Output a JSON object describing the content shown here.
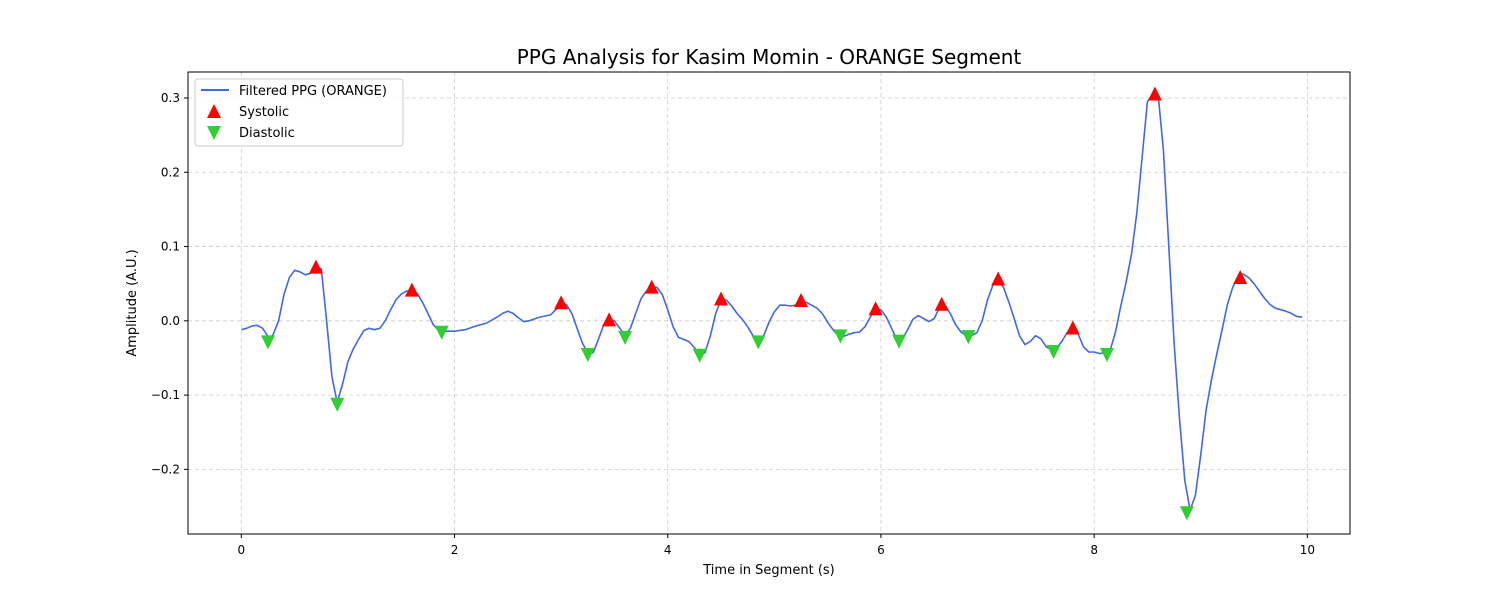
{
  "chart_data": {
    "type": "line",
    "title": "PPG Analysis for Kasim Momin - ORANGE Segment",
    "xlabel": "Time in Segment (s)",
    "ylabel": "Amplitude (A.U.)",
    "xlim": [
      -0.5,
      10.4
    ],
    "ylim": [
      -0.287,
      0.335
    ],
    "xticks": [
      0,
      2,
      4,
      6,
      8,
      10
    ],
    "xtick_labels": [
      "0",
      "2",
      "4",
      "6",
      "8",
      "10"
    ],
    "yticks": [
      -0.2,
      -0.1,
      0.0,
      0.1,
      0.2,
      0.3
    ],
    "ytick_labels": [
      "−0.2",
      "−0.1",
      "0.0",
      "0.1",
      "0.2",
      "0.3"
    ],
    "grid": true,
    "legend_position": "top-left",
    "colors": {
      "line": "#4169e1",
      "systolic": "#ff0000",
      "diastolic": "#32cd32",
      "grid": "#cccccc"
    },
    "series": [
      {
        "name": "Filtered PPG (ORANGE)",
        "type": "line",
        "points": [
          [
            0.0,
            -0.012
          ],
          [
            0.05,
            -0.01
          ],
          [
            0.1,
            -0.007
          ],
          [
            0.15,
            -0.006
          ],
          [
            0.2,
            -0.01
          ],
          [
            0.27,
            -0.025
          ],
          [
            0.3,
            -0.018
          ],
          [
            0.35,
            0.0
          ],
          [
            0.4,
            0.035
          ],
          [
            0.45,
            0.058
          ],
          [
            0.5,
            0.068
          ],
          [
            0.55,
            0.066
          ],
          [
            0.6,
            0.062
          ],
          [
            0.65,
            0.064
          ],
          [
            0.7,
            0.072
          ],
          [
            0.75,
            0.07
          ],
          [
            0.8,
            0.0
          ],
          [
            0.85,
            -0.075
          ],
          [
            0.9,
            -0.11
          ],
          [
            0.95,
            -0.085
          ],
          [
            1.0,
            -0.055
          ],
          [
            1.05,
            -0.038
          ],
          [
            1.1,
            -0.025
          ],
          [
            1.15,
            -0.013
          ],
          [
            1.2,
            -0.01
          ],
          [
            1.25,
            -0.012
          ],
          [
            1.3,
            -0.01
          ],
          [
            1.35,
            0.0
          ],
          [
            1.4,
            0.015
          ],
          [
            1.45,
            0.028
          ],
          [
            1.5,
            0.036
          ],
          [
            1.55,
            0.04
          ],
          [
            1.6,
            0.04
          ],
          [
            1.65,
            0.037
          ],
          [
            1.7,
            0.025
          ],
          [
            1.75,
            0.01
          ],
          [
            1.8,
            -0.005
          ],
          [
            1.85,
            -0.013
          ],
          [
            1.9,
            -0.014
          ],
          [
            1.95,
            -0.014
          ],
          [
            2.0,
            -0.014
          ],
          [
            2.1,
            -0.012
          ],
          [
            2.2,
            -0.007
          ],
          [
            2.3,
            -0.003
          ],
          [
            2.4,
            0.005
          ],
          [
            2.45,
            0.01
          ],
          [
            2.5,
            0.013
          ],
          [
            2.55,
            0.01
          ],
          [
            2.6,
            0.004
          ],
          [
            2.65,
            -0.001
          ],
          [
            2.7,
            0.0
          ],
          [
            2.8,
            0.005
          ],
          [
            2.9,
            0.008
          ],
          [
            3.0,
            0.022
          ],
          [
            3.05,
            0.022
          ],
          [
            3.1,
            0.01
          ],
          [
            3.15,
            -0.01
          ],
          [
            3.2,
            -0.03
          ],
          [
            3.25,
            -0.043
          ],
          [
            3.3,
            -0.043
          ],
          [
            3.35,
            -0.025
          ],
          [
            3.4,
            -0.005
          ],
          [
            3.45,
            0.002
          ],
          [
            3.5,
            0.0
          ],
          [
            3.55,
            -0.01
          ],
          [
            3.6,
            -0.02
          ],
          [
            3.65,
            -0.01
          ],
          [
            3.7,
            0.01
          ],
          [
            3.75,
            0.03
          ],
          [
            3.8,
            0.04
          ],
          [
            3.85,
            0.045
          ],
          [
            3.9,
            0.045
          ],
          [
            3.95,
            0.035
          ],
          [
            4.0,
            0.015
          ],
          [
            4.05,
            -0.008
          ],
          [
            4.1,
            -0.022
          ],
          [
            4.2,
            -0.028
          ],
          [
            4.25,
            -0.036
          ],
          [
            4.3,
            -0.045
          ],
          [
            4.35,
            -0.043
          ],
          [
            4.4,
            -0.02
          ],
          [
            4.45,
            0.01
          ],
          [
            4.5,
            0.028
          ],
          [
            4.55,
            0.028
          ],
          [
            4.6,
            0.02
          ],
          [
            4.65,
            0.01
          ],
          [
            4.7,
            0.002
          ],
          [
            4.75,
            -0.008
          ],
          [
            4.8,
            -0.02
          ],
          [
            4.85,
            -0.027
          ],
          [
            4.9,
            -0.02
          ],
          [
            4.95,
            -0.002
          ],
          [
            5.0,
            0.012
          ],
          [
            5.05,
            0.021
          ],
          [
            5.1,
            0.021
          ],
          [
            5.15,
            0.02
          ],
          [
            5.2,
            0.021
          ],
          [
            5.25,
            0.026
          ],
          [
            5.3,
            0.025
          ],
          [
            5.35,
            0.021
          ],
          [
            5.4,
            0.017
          ],
          [
            5.45,
            0.01
          ],
          [
            5.5,
            -0.002
          ],
          [
            5.55,
            -0.012
          ],
          [
            5.6,
            -0.02
          ],
          [
            5.65,
            -0.021
          ],
          [
            5.7,
            -0.018
          ],
          [
            5.75,
            -0.016
          ],
          [
            5.8,
            -0.015
          ],
          [
            5.85,
            -0.008
          ],
          [
            5.9,
            0.005
          ],
          [
            5.95,
            0.015
          ],
          [
            6.0,
            0.015
          ],
          [
            6.05,
            0.005
          ],
          [
            6.1,
            -0.01
          ],
          [
            6.15,
            -0.025
          ],
          [
            6.2,
            -0.025
          ],
          [
            6.25,
            -0.012
          ],
          [
            6.3,
            0.002
          ],
          [
            6.35,
            0.007
          ],
          [
            6.4,
            0.003
          ],
          [
            6.45,
            -0.001
          ],
          [
            6.5,
            0.003
          ],
          [
            6.55,
            0.018
          ],
          [
            6.6,
            0.021
          ],
          [
            6.65,
            0.01
          ],
          [
            6.7,
            -0.005
          ],
          [
            6.75,
            -0.015
          ],
          [
            6.8,
            -0.02
          ],
          [
            6.85,
            -0.02
          ],
          [
            6.9,
            -0.016
          ],
          [
            6.95,
            0.0
          ],
          [
            7.0,
            0.028
          ],
          [
            7.05,
            0.048
          ],
          [
            7.1,
            0.055
          ],
          [
            7.15,
            0.045
          ],
          [
            7.2,
            0.025
          ],
          [
            7.25,
            0.003
          ],
          [
            7.3,
            -0.02
          ],
          [
            7.35,
            -0.032
          ],
          [
            7.4,
            -0.028
          ],
          [
            7.45,
            -0.02
          ],
          [
            7.5,
            -0.024
          ],
          [
            7.55,
            -0.035
          ],
          [
            7.6,
            -0.039
          ],
          [
            7.65,
            -0.037
          ],
          [
            7.7,
            -0.027
          ],
          [
            7.75,
            -0.015
          ],
          [
            7.8,
            -0.01
          ],
          [
            7.85,
            -0.018
          ],
          [
            7.9,
            -0.035
          ],
          [
            7.95,
            -0.042
          ],
          [
            8.0,
            -0.042
          ],
          [
            8.05,
            -0.044
          ],
          [
            8.1,
            -0.043
          ],
          [
            8.15,
            -0.04
          ],
          [
            8.2,
            -0.015
          ],
          [
            8.25,
            0.02
          ],
          [
            8.3,
            0.052
          ],
          [
            8.35,
            0.09
          ],
          [
            8.4,
            0.145
          ],
          [
            8.45,
            0.22
          ],
          [
            8.5,
            0.295
          ],
          [
            8.55,
            0.305
          ],
          [
            8.6,
            0.305
          ],
          [
            8.65,
            0.23
          ],
          [
            8.7,
            0.1
          ],
          [
            8.75,
            -0.03
          ],
          [
            8.8,
            -0.13
          ],
          [
            8.85,
            -0.215
          ],
          [
            8.9,
            -0.255
          ],
          [
            8.95,
            -0.235
          ],
          [
            9.0,
            -0.18
          ],
          [
            9.05,
            -0.12
          ],
          [
            9.1,
            -0.08
          ],
          [
            9.15,
            -0.045
          ],
          [
            9.2,
            -0.012
          ],
          [
            9.25,
            0.022
          ],
          [
            9.3,
            0.045
          ],
          [
            9.35,
            0.06
          ],
          [
            9.4,
            0.063
          ],
          [
            9.45,
            0.058
          ],
          [
            9.5,
            0.05
          ],
          [
            9.55,
            0.04
          ],
          [
            9.6,
            0.03
          ],
          [
            9.65,
            0.022
          ],
          [
            9.7,
            0.017
          ],
          [
            9.8,
            0.013
          ],
          [
            9.85,
            0.01
          ],
          [
            9.9,
            0.006
          ],
          [
            9.95,
            0.005
          ]
        ]
      },
      {
        "name": "Systolic",
        "type": "scatter",
        "marker": "triangle-up",
        "points": [
          [
            0.7,
            0.073
          ],
          [
            1.6,
            0.042
          ],
          [
            3.0,
            0.025
          ],
          [
            3.45,
            0.002
          ],
          [
            3.85,
            0.046
          ],
          [
            4.5,
            0.03
          ],
          [
            5.25,
            0.028
          ],
          [
            5.95,
            0.017
          ],
          [
            6.57,
            0.023
          ],
          [
            7.1,
            0.057
          ],
          [
            7.8,
            -0.009
          ],
          [
            8.57,
            0.306
          ],
          [
            9.37,
            0.059
          ]
        ]
      },
      {
        "name": "Diastolic",
        "type": "scatter",
        "marker": "triangle-down",
        "points": [
          [
            0.25,
            -0.029
          ],
          [
            0.9,
            -0.113
          ],
          [
            1.88,
            -0.016
          ],
          [
            3.25,
            -0.046
          ],
          [
            3.6,
            -0.023
          ],
          [
            4.3,
            -0.047
          ],
          [
            4.85,
            -0.029
          ],
          [
            5.62,
            -0.021
          ],
          [
            6.17,
            -0.028
          ],
          [
            6.82,
            -0.022
          ],
          [
            7.62,
            -0.042
          ],
          [
            8.12,
            -0.046
          ],
          [
            8.87,
            -0.259
          ]
        ]
      }
    ]
  }
}
